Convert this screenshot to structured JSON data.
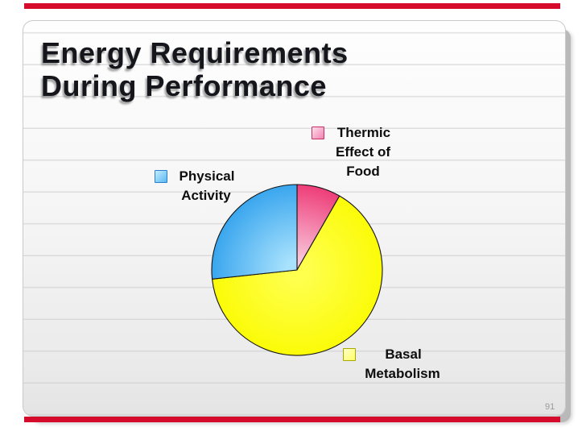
{
  "title": {
    "line1": "Energy Requirements",
    "line2": "During Performance"
  },
  "page_number": "91",
  "chart_data": {
    "type": "pie",
    "title": "Energy Requirements During Performance",
    "start_angle_deg": 0,
    "direction": "clockwise",
    "legend_position": "around",
    "slices": [
      {
        "label": "Thermic Effect of Food",
        "value_pct": 8.3,
        "color": "#ee3d78",
        "color_light": "#f9c6db"
      },
      {
        "label": "Basal Metabolism",
        "value_pct": 65.0,
        "color": "#fbfb08",
        "color_light": "#ffff4e"
      },
      {
        "label": "Physical Activity",
        "value_pct": 26.7,
        "color": "#3aa6ee",
        "color_light": "#a9e2fd"
      }
    ]
  },
  "legends": {
    "thermic": {
      "lines": [
        "Thermic",
        "Effect of",
        "Food"
      ]
    },
    "physical": {
      "lines": [
        "Physical",
        "Activity"
      ]
    },
    "basal": {
      "lines": [
        "Basal",
        "Metabolism"
      ]
    }
  },
  "swatches": {
    "thermic": {
      "border": "#c53063",
      "fill_light": "#fddeec",
      "fill_dark": "#f282b1"
    },
    "physical": {
      "border": "#2b7fc8",
      "fill_light": "#c9edfd",
      "fill_dark": "#58baf2"
    },
    "basal": {
      "border": "#a8a800",
      "fill_light": "#ffffc9",
      "fill_dark": "#ffff66"
    }
  },
  "colors": {
    "accent_bar": "#d60b2c",
    "title_text": "#15151c",
    "page_number_text": "#9b9b9b",
    "panel_background": "#f0f0f0",
    "pie_outline": "#151515"
  }
}
